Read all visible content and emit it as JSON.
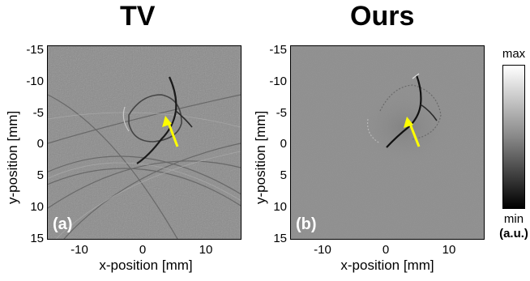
{
  "panels": [
    {
      "title": "TV",
      "letter": "(a)"
    },
    {
      "title": "Ours",
      "letter": "(b)"
    }
  ],
  "axes": {
    "xlabel": "x-position [mm]",
    "ylabel": "y-position [mm]",
    "xticks": [
      "-10",
      "0",
      "10"
    ],
    "yticks": [
      "-15",
      "-10",
      "-5",
      "0",
      "5",
      "10",
      "15"
    ]
  },
  "colorbar": {
    "max_label": "max",
    "min_label": "min",
    "unit_label": "(a.u.)"
  },
  "colors": {
    "arrow": "#ffff00",
    "image_bg_a": "#8a8a8a",
    "image_bg_b": "#8e8e8e"
  }
}
